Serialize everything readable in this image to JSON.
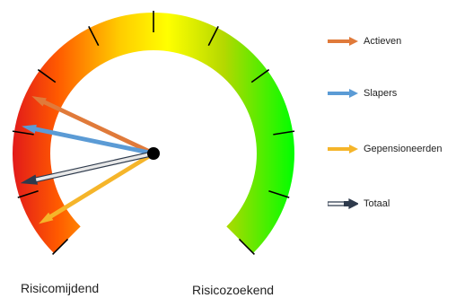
{
  "chart_data": {
    "type": "gauge",
    "scale_labels": {
      "left": "Risicomijdend",
      "right": "Risicozoekend"
    },
    "colors": [
      "#e21a1a",
      "#ff6a00",
      "#ffd400",
      "#ffff00",
      "#b4d800",
      "#33ee00",
      "#00ff00"
    ],
    "tick_count": 11,
    "series": [
      {
        "name": "Actieven",
        "color": "#e07a3a",
        "value": 0.26
      },
      {
        "name": "Slapers",
        "color": "#5b9bd5",
        "value": 0.21
      },
      {
        "name": "Gepensioneerden",
        "color": "#f5b52a",
        "value": 0.05
      },
      {
        "name": "Totaal",
        "color": "#2e3a4c",
        "value": 0.12
      }
    ]
  }
}
